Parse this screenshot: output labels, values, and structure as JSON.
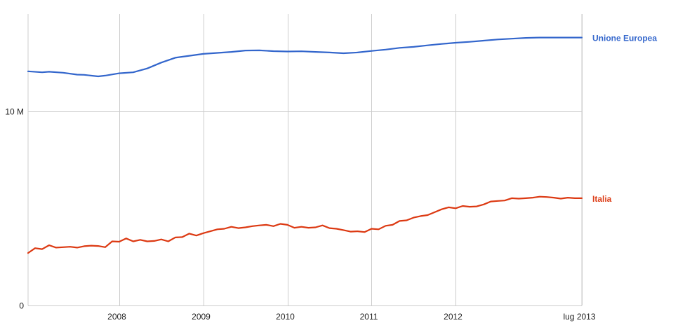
{
  "chart_data": {
    "type": "line",
    "title": "",
    "xlabel": "",
    "ylabel": "",
    "x_range": [
      "2006-12",
      "2013-07"
    ],
    "x_ticks": [
      {
        "x": "2008-01",
        "label": "2008"
      },
      {
        "x": "2009-01",
        "label": "2009"
      },
      {
        "x": "2010-01",
        "label": "2010"
      },
      {
        "x": "2011-01",
        "label": "2011"
      },
      {
        "x": "2012-01",
        "label": "2012"
      },
      {
        "x": "2013-07",
        "label": "lug 2013"
      }
    ],
    "ylim": [
      0,
      15000000
    ],
    "y_ticks": [
      {
        "value": 0,
        "label": "0"
      },
      {
        "value": 10000000,
        "label": "10 M"
      }
    ],
    "grid": true,
    "legend": "right, at line ends",
    "series": [
      {
        "name": "Unione Europea",
        "color": "#3366cc",
        "points": [
          [
            "2006-12",
            12.05
          ],
          [
            "2007-02",
            12.0
          ],
          [
            "2007-03",
            12.03
          ],
          [
            "2007-05",
            11.98
          ],
          [
            "2007-07",
            11.88
          ],
          [
            "2007-08",
            11.87
          ],
          [
            "2007-10",
            11.79
          ],
          [
            "2007-11",
            11.83
          ],
          [
            "2008-01",
            11.95
          ],
          [
            "2008-03",
            12.0
          ],
          [
            "2008-05",
            12.2
          ],
          [
            "2008-07",
            12.5
          ],
          [
            "2008-09",
            12.75
          ],
          [
            "2008-11",
            12.85
          ],
          [
            "2009-01",
            12.95
          ],
          [
            "2009-03",
            13.0
          ],
          [
            "2009-05",
            13.05
          ],
          [
            "2009-07",
            13.12
          ],
          [
            "2009-09",
            13.13
          ],
          [
            "2009-11",
            13.09
          ],
          [
            "2010-01",
            13.07
          ],
          [
            "2010-03",
            13.08
          ],
          [
            "2010-05",
            13.05
          ],
          [
            "2010-07",
            13.02
          ],
          [
            "2010-09",
            12.98
          ],
          [
            "2010-11",
            13.02
          ],
          [
            "2011-01",
            13.1
          ],
          [
            "2011-03",
            13.17
          ],
          [
            "2011-05",
            13.26
          ],
          [
            "2011-07",
            13.31
          ],
          [
            "2011-09",
            13.39
          ],
          [
            "2011-11",
            13.46
          ],
          [
            "2012-01",
            13.52
          ],
          [
            "2012-03",
            13.57
          ],
          [
            "2012-05",
            13.63
          ],
          [
            "2012-07",
            13.69
          ],
          [
            "2012-09",
            13.73
          ],
          [
            "2012-11",
            13.77
          ],
          [
            "2013-01",
            13.79
          ],
          [
            "2013-03",
            13.79
          ],
          [
            "2013-05",
            13.79
          ],
          [
            "2013-07",
            13.79
          ]
        ]
      },
      {
        "name": "Italia",
        "color": "#dc3912",
        "points": [
          [
            "2006-12",
            2.7
          ],
          [
            "2007-01",
            2.95
          ],
          [
            "2007-02",
            2.9
          ],
          [
            "2007-03",
            3.1
          ],
          [
            "2007-04",
            2.98
          ],
          [
            "2007-05",
            3.0
          ],
          [
            "2007-06",
            3.02
          ],
          [
            "2007-07",
            2.98
          ],
          [
            "2007-08",
            3.05
          ],
          [
            "2007-09",
            3.08
          ],
          [
            "2007-10",
            3.06
          ],
          [
            "2007-11",
            3.0
          ],
          [
            "2007-12",
            3.3
          ],
          [
            "2008-01",
            3.28
          ],
          [
            "2008-02",
            3.45
          ],
          [
            "2008-03",
            3.3
          ],
          [
            "2008-04",
            3.38
          ],
          [
            "2008-05",
            3.3
          ],
          [
            "2008-06",
            3.32
          ],
          [
            "2008-07",
            3.4
          ],
          [
            "2008-08",
            3.3
          ],
          [
            "2008-09",
            3.5
          ],
          [
            "2008-10",
            3.52
          ],
          [
            "2008-11",
            3.7
          ],
          [
            "2008-12",
            3.6
          ],
          [
            "2009-01",
            3.72
          ],
          [
            "2009-02",
            3.82
          ],
          [
            "2009-03",
            3.92
          ],
          [
            "2009-04",
            3.95
          ],
          [
            "2009-05",
            4.05
          ],
          [
            "2009-06",
            3.98
          ],
          [
            "2009-07",
            4.02
          ],
          [
            "2009-08",
            4.08
          ],
          [
            "2009-09",
            4.12
          ],
          [
            "2009-10",
            4.15
          ],
          [
            "2009-11",
            4.08
          ],
          [
            "2009-12",
            4.2
          ],
          [
            "2010-01",
            4.15
          ],
          [
            "2010-02",
            4.0
          ],
          [
            "2010-03",
            4.05
          ],
          [
            "2010-04",
            4.0
          ],
          [
            "2010-05",
            4.02
          ],
          [
            "2010-06",
            4.12
          ],
          [
            "2010-07",
            3.98
          ],
          [
            "2010-08",
            3.95
          ],
          [
            "2010-09",
            3.88
          ],
          [
            "2010-10",
            3.8
          ],
          [
            "2010-11",
            3.82
          ],
          [
            "2010-12",
            3.78
          ],
          [
            "2011-01",
            3.95
          ],
          [
            "2011-02",
            3.92
          ],
          [
            "2011-03",
            4.1
          ],
          [
            "2011-04",
            4.15
          ],
          [
            "2011-05",
            4.35
          ],
          [
            "2011-06",
            4.38
          ],
          [
            "2011-07",
            4.52
          ],
          [
            "2011-08",
            4.6
          ],
          [
            "2011-09",
            4.65
          ],
          [
            "2011-10",
            4.8
          ],
          [
            "2011-11",
            4.95
          ],
          [
            "2011-12",
            5.05
          ],
          [
            "2012-01",
            5.0
          ],
          [
            "2012-02",
            5.12
          ],
          [
            "2012-03",
            5.08
          ],
          [
            "2012-04",
            5.1
          ],
          [
            "2012-05",
            5.2
          ],
          [
            "2012-06",
            5.35
          ],
          [
            "2012-07",
            5.38
          ],
          [
            "2012-08",
            5.4
          ],
          [
            "2012-09",
            5.52
          ],
          [
            "2012-10",
            5.5
          ],
          [
            "2012-11",
            5.52
          ],
          [
            "2012-12",
            5.55
          ],
          [
            "2013-01",
            5.6
          ],
          [
            "2013-02",
            5.58
          ],
          [
            "2013-03",
            5.55
          ],
          [
            "2013-04",
            5.5
          ],
          [
            "2013-05",
            5.55
          ],
          [
            "2013-06",
            5.52
          ],
          [
            "2013-07",
            5.52
          ]
        ]
      }
    ],
    "value_unit": "M"
  }
}
